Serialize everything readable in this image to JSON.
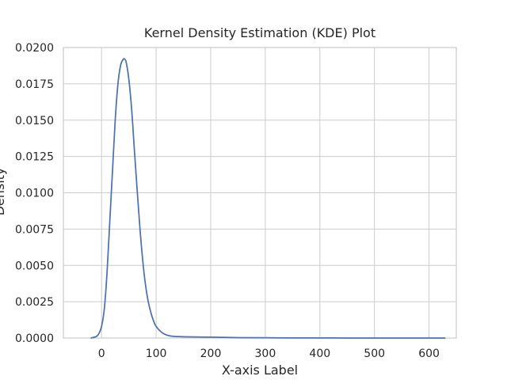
{
  "chart_data": {
    "type": "line",
    "title": "Kernel Density Estimation (KDE) Plot",
    "xlabel": "X-axis Label",
    "ylabel": "Density",
    "xlim": [
      -70,
      650
    ],
    "ylim": [
      0,
      0.02
    ],
    "x_ticks": [
      0,
      100,
      200,
      300,
      400,
      500,
      600
    ],
    "y_ticks": [
      0.0,
      0.0025,
      0.005,
      0.0075,
      0.01,
      0.0125,
      0.015,
      0.0175,
      0.02
    ],
    "x_tick_labels": [
      "0",
      "100",
      "200",
      "300",
      "400",
      "500",
      "600"
    ],
    "y_tick_labels": [
      "0.0000",
      "0.0025",
      "0.0050",
      "0.0075",
      "0.0100",
      "0.0125",
      "0.0150",
      "0.0175",
      "0.0200"
    ],
    "grid": true,
    "line_color": "#4c72b0",
    "series": [
      {
        "x": [
          -20,
          -10,
          -5,
          0,
          5,
          10,
          15,
          20,
          25,
          30,
          35,
          40,
          42,
          45,
          50,
          55,
          60,
          65,
          70,
          75,
          80,
          85,
          90,
          95,
          100,
          110,
          120,
          130,
          140,
          160,
          200,
          250,
          300,
          350,
          400,
          450,
          500,
          550,
          600,
          630
        ],
        "y": [
          0.0,
          0.0001,
          0.0003,
          0.0008,
          0.002,
          0.0045,
          0.008,
          0.0115,
          0.015,
          0.0175,
          0.0188,
          0.0192,
          0.0192,
          0.019,
          0.0178,
          0.0158,
          0.013,
          0.0103,
          0.0077,
          0.0055,
          0.0038,
          0.0026,
          0.0018,
          0.0012,
          0.0008,
          0.0004,
          0.0002,
          0.00012,
          0.0001,
          8e-05,
          6e-05,
          3e-05,
          2e-05,
          1e-05,
          1e-05,
          0.0,
          0.0,
          0.0,
          0.0,
          0.0
        ]
      }
    ]
  }
}
